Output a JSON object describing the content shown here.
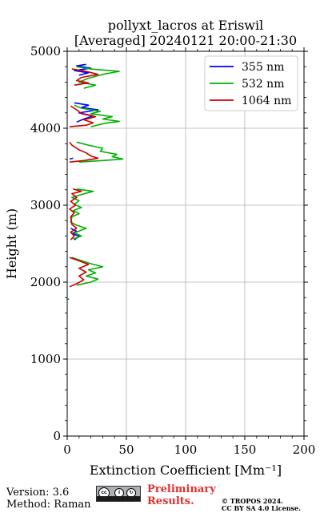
{
  "title": {
    "line1": "pollyxt_lacros at Eriswil",
    "line2": "[Averaged] 20240121 20:00-21:30"
  },
  "footer": {
    "version": "Version: 3.6",
    "method": "Method: Raman",
    "prelim_line1": "Preliminary",
    "prelim_line2": "Results.",
    "copyright_line1": "© TROPOS 2024.",
    "copyright_line2": "CC BY SA 4.0 License.",
    "cc_badge_icon": "cc-by-sa-badge-icon"
  },
  "chart_data": {
    "type": "line",
    "title": "pollyxt_lacros at Eriswil [Averaged] 20240121 20:00-21:30",
    "xlabel": "Extinction Coefficient [Mm⁻¹]",
    "ylabel": "Height (m)",
    "xlim": [
      0,
      200
    ],
    "ylim": [
      0,
      5000
    ],
    "x_ticks": [
      0,
      50,
      100,
      150,
      200
    ],
    "y_ticks": [
      0,
      1000,
      2000,
      3000,
      4000,
      5000
    ],
    "grid": true,
    "legend_position": "top-right",
    "series": [
      {
        "name": "355 nm",
        "color": "#0000ff",
        "points": [
          [
            6,
            2550
          ],
          [
            10,
            2600
          ],
          [
            4,
            2630
          ],
          [
            8,
            2660
          ],
          [
            3,
            2700
          ],
          [
            2,
            3600
          ],
          [
            5,
            3610
          ],
          [
            8,
            4080
          ],
          [
            14,
            4120
          ],
          [
            22,
            4160
          ],
          [
            10,
            4200
          ],
          [
            26,
            4240
          ],
          [
            12,
            4270
          ],
          [
            18,
            4300
          ],
          [
            6,
            4330
          ],
          [
            10,
            4690
          ],
          [
            18,
            4720
          ],
          [
            6,
            4750
          ],
          [
            20,
            4780
          ],
          [
            8,
            4810
          ],
          [
            16,
            4830
          ]
        ]
      },
      {
        "name": "532 nm",
        "color": "#00b000",
        "points": [
          [
            1,
            1780
          ],
          [
            8,
            1960
          ],
          [
            20,
            2000
          ],
          [
            26,
            2040
          ],
          [
            16,
            2080
          ],
          [
            24,
            2120
          ],
          [
            18,
            2160
          ],
          [
            30,
            2200
          ],
          [
            20,
            2240
          ],
          [
            12,
            2280
          ],
          [
            4,
            2320
          ],
          [
            5,
            2560
          ],
          [
            12,
            2600
          ],
          [
            6,
            2640
          ],
          [
            16,
            2700
          ],
          [
            8,
            2740
          ],
          [
            3,
            2780
          ],
          [
            4,
            2850
          ],
          [
            10,
            2890
          ],
          [
            5,
            2930
          ],
          [
            12,
            2970
          ],
          [
            6,
            3010
          ],
          [
            10,
            3060
          ],
          [
            4,
            3100
          ],
          [
            12,
            3140
          ],
          [
            22,
            3180
          ],
          [
            8,
            3210
          ],
          [
            10,
            3560
          ],
          [
            30,
            3580
          ],
          [
            47,
            3600
          ],
          [
            38,
            3630
          ],
          [
            42,
            3660
          ],
          [
            28,
            3700
          ],
          [
            30,
            3740
          ],
          [
            18,
            3780
          ],
          [
            8,
            3820
          ],
          [
            20,
            4020
          ],
          [
            28,
            4050
          ],
          [
            34,
            4070
          ],
          [
            44,
            4090
          ],
          [
            30,
            4120
          ],
          [
            38,
            4150
          ],
          [
            20,
            4190
          ],
          [
            28,
            4220
          ],
          [
            12,
            4260
          ],
          [
            6,
            4300
          ],
          [
            14,
            4520
          ],
          [
            24,
            4560
          ],
          [
            10,
            4600
          ],
          [
            18,
            4650
          ],
          [
            30,
            4700
          ],
          [
            44,
            4740
          ],
          [
            20,
            4770
          ],
          [
            8,
            4800
          ]
        ]
      },
      {
        "name": "1064 nm",
        "color": "#cc0000",
        "points": [
          [
            2,
            1940
          ],
          [
            8,
            1980
          ],
          [
            14,
            2030
          ],
          [
            10,
            2080
          ],
          [
            16,
            2130
          ],
          [
            10,
            2180
          ],
          [
            18,
            2230
          ],
          [
            8,
            2290
          ],
          [
            2,
            2320
          ],
          [
            3,
            2550
          ],
          [
            6,
            2600
          ],
          [
            3,
            2650
          ],
          [
            8,
            2700
          ],
          [
            4,
            2750
          ],
          [
            3,
            2850
          ],
          [
            6,
            2900
          ],
          [
            2,
            2950
          ],
          [
            7,
            3000
          ],
          [
            3,
            3050
          ],
          [
            8,
            3100
          ],
          [
            4,
            3150
          ],
          [
            12,
            3180
          ],
          [
            5,
            3210
          ],
          [
            2,
            3560
          ],
          [
            14,
            3580
          ],
          [
            26,
            3610
          ],
          [
            20,
            3640
          ],
          [
            16,
            3680
          ],
          [
            10,
            3720
          ],
          [
            4,
            3780
          ],
          [
            2,
            3820
          ],
          [
            2,
            4020
          ],
          [
            16,
            4040
          ],
          [
            22,
            4070
          ],
          [
            14,
            4110
          ],
          [
            24,
            4150
          ],
          [
            12,
            4190
          ],
          [
            8,
            4240
          ],
          [
            3,
            4290
          ],
          [
            6,
            4560
          ],
          [
            18,
            4590
          ],
          [
            8,
            4620
          ],
          [
            12,
            4660
          ],
          [
            26,
            4700
          ],
          [
            16,
            4740
          ],
          [
            4,
            4770
          ]
        ]
      }
    ]
  }
}
